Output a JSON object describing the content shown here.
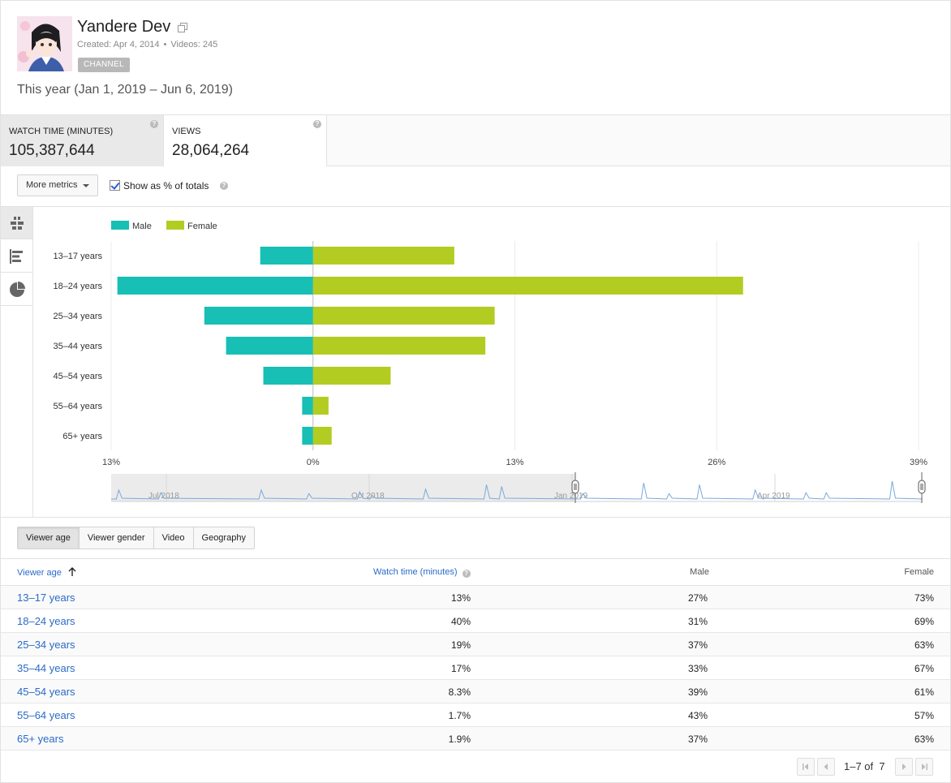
{
  "channel": {
    "name": "Yandere Dev",
    "created": "Created: Apr 4, 2014",
    "videos": "Videos: 245",
    "badge": "CHANNEL"
  },
  "date_range": "This year (Jan 1, 2019 – Jun 6, 2019)",
  "metrics": [
    {
      "label": "WATCH TIME (MINUTES)",
      "value": "105,387,644"
    },
    {
      "label": "VIEWS",
      "value": "28,064,264"
    }
  ],
  "toolbar": {
    "more_metrics": "More metrics",
    "show_pct": "Show as % of totals",
    "show_pct_checked": true
  },
  "icons": {
    "ext": "external-link-icon",
    "side": [
      "grouped-bar-icon",
      "horizontal-bar-icon",
      "pie-chart-icon"
    ],
    "pager": [
      "first-page-icon",
      "prev-page-icon",
      "next-page-icon",
      "last-page-icon"
    ]
  },
  "colors": {
    "male": "#17bfb4",
    "female": "#b3cc22",
    "link": "#2a6bc8"
  },
  "chart_data": {
    "type": "bar",
    "orientation": "horizontal-diverging",
    "categories": [
      "13–17 years",
      "18–24 years",
      "25–34 years",
      "35–44 years",
      "45–54 years",
      "55–64 years",
      "65+ years"
    ],
    "series": [
      {
        "name": "Male",
        "values": [
          3.4,
          12.6,
          7.0,
          5.6,
          3.2,
          0.7,
          0.7
        ]
      },
      {
        "name": "Female",
        "values": [
          9.1,
          27.7,
          11.7,
          11.1,
          5.0,
          1.0,
          1.2
        ]
      }
    ],
    "x_ticks": [
      "13%",
      "0%",
      "13%",
      "26%",
      "39%"
    ],
    "xlim": [
      -13,
      39
    ],
    "legend": "top-left",
    "grid": true,
    "timeline_labels": [
      "Jul 2018",
      "Oct 2018",
      "Jan 2019",
      "Apr 2019"
    ],
    "timeline_spikes": [
      [
        0.15,
        0.5
      ],
      [
        0.98,
        0.35
      ],
      [
        2.96,
        0.5
      ],
      [
        3.9,
        0.3
      ],
      [
        4.9,
        0.4
      ],
      [
        5.15,
        0.2
      ],
      [
        6.2,
        0.55
      ],
      [
        7.4,
        0.8
      ],
      [
        7.7,
        0.7
      ],
      [
        9.3,
        0.3
      ],
      [
        10.5,
        0.9
      ],
      [
        11.0,
        0.3
      ],
      [
        11.6,
        0.8
      ],
      [
        12.7,
        0.5
      ],
      [
        13.7,
        0.35
      ],
      [
        14.1,
        0.35
      ],
      [
        15.4,
        1.0
      ]
    ]
  },
  "table_tabs": [
    "Viewer age",
    "Viewer gender",
    "Video",
    "Geography"
  ],
  "table": {
    "headers": {
      "age": "Viewer age",
      "watch": "Watch time (minutes)",
      "male": "Male",
      "female": "Female"
    },
    "rows": [
      {
        "age": "13–17 years",
        "watch": "13%",
        "male": "27%",
        "female": "73%"
      },
      {
        "age": "18–24 years",
        "watch": "40%",
        "male": "31%",
        "female": "69%"
      },
      {
        "age": "25–34 years",
        "watch": "19%",
        "male": "37%",
        "female": "63%"
      },
      {
        "age": "35–44 years",
        "watch": "17%",
        "male": "33%",
        "female": "67%"
      },
      {
        "age": "45–54 years",
        "watch": "8.3%",
        "male": "39%",
        "female": "61%"
      },
      {
        "age": "55–64 years",
        "watch": "1.7%",
        "male": "43%",
        "female": "57%"
      },
      {
        "age": "65+ years",
        "watch": "1.9%",
        "male": "37%",
        "female": "63%"
      }
    ]
  },
  "pager": {
    "range": "1–7 of",
    "total": "7"
  }
}
